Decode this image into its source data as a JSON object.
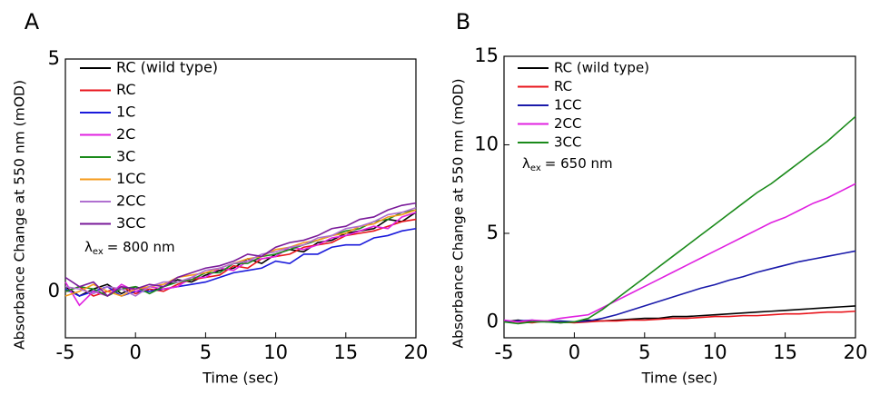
{
  "chart_data": [
    {
      "type": "line",
      "panel": "A",
      "xlabel": "Time (sec)",
      "ylabel": "Absorbance Change at 550 nm (mOD)",
      "xlim": [
        -5,
        20
      ],
      "ylim": [
        -1,
        5
      ],
      "xticks": [
        -5,
        0,
        5,
        10,
        15,
        20
      ],
      "yticks": [
        0,
        5
      ],
      "annotation": {
        "symbol": "λ",
        "subscript": "ex",
        "text": "= 800 nm"
      },
      "x": [
        -5,
        -4,
        -3,
        -2,
        -1,
        0,
        1,
        2,
        3,
        4,
        5,
        6,
        7,
        8,
        9,
        10,
        11,
        12,
        13,
        14,
        15,
        16,
        17,
        18,
        19,
        20
      ],
      "series": [
        {
          "name": "RC (wild type)",
          "color": "#000000",
          "values": [
            0.1,
            -0.1,
            0.05,
            0.15,
            -0.05,
            0.1,
            0,
            0.1,
            0.25,
            0.2,
            0.35,
            0.45,
            0.5,
            0.7,
            0.6,
            0.8,
            0.9,
            0.85,
            1.05,
            1.1,
            1.25,
            1.3,
            1.35,
            1.55,
            1.5,
            1.7
          ]
        },
        {
          "name": "RC",
          "color": "#e8141b",
          "values": [
            0,
            0.1,
            -0.1,
            0,
            0.1,
            -0.05,
            0.05,
            0,
            0.15,
            0.25,
            0.3,
            0.35,
            0.55,
            0.5,
            0.7,
            0.75,
            0.8,
            0.95,
            1.0,
            1.05,
            1.2,
            1.25,
            1.3,
            1.4,
            1.5,
            1.55
          ]
        },
        {
          "name": "1C",
          "color": "#1a1adb",
          "values": [
            0.05,
            -0.1,
            0,
            0.1,
            -0.1,
            0,
            0,
            0.05,
            0.1,
            0.15,
            0.2,
            0.3,
            0.4,
            0.45,
            0.5,
            0.65,
            0.6,
            0.8,
            0.8,
            0.95,
            1.0,
            1.0,
            1.15,
            1.2,
            1.3,
            1.35
          ]
        },
        {
          "name": "2C",
          "color": "#e020e0",
          "values": [
            0.2,
            -0.3,
            0,
            -0.1,
            0.15,
            0,
            0.1,
            0.05,
            0.1,
            0.3,
            0.3,
            0.5,
            0.45,
            0.65,
            0.7,
            0.75,
            0.95,
            0.9,
            1.0,
            1.15,
            1.2,
            1.3,
            1.4,
            1.35,
            1.6,
            1.7
          ]
        },
        {
          "name": "3C",
          "color": "#1a8a1a",
          "values": [
            0,
            0.1,
            0.05,
            -0.1,
            0.05,
            0.1,
            -0.05,
            0.1,
            0.2,
            0.25,
            0.4,
            0.4,
            0.6,
            0.6,
            0.75,
            0.8,
            0.9,
            1.0,
            1.1,
            1.2,
            1.3,
            1.35,
            1.5,
            1.55,
            1.7,
            1.75
          ]
        },
        {
          "name": "1CC",
          "color": "#f59a1a",
          "values": [
            -0.1,
            0,
            0.15,
            0,
            -0.1,
            0.05,
            0.1,
            0.15,
            0.3,
            0.35,
            0.4,
            0.5,
            0.6,
            0.7,
            0.75,
            0.9,
            0.95,
            1.05,
            1.1,
            1.2,
            1.25,
            1.4,
            1.45,
            1.6,
            1.65,
            1.75
          ]
        },
        {
          "name": "2CC",
          "color": "#b070d0",
          "values": [
            0.1,
            0.05,
            -0.05,
            0.1,
            0.05,
            -0.1,
            0.1,
            0.2,
            0.2,
            0.3,
            0.45,
            0.5,
            0.6,
            0.65,
            0.8,
            0.85,
            0.95,
            1.0,
            1.15,
            1.2,
            1.35,
            1.4,
            1.5,
            1.65,
            1.7,
            1.8
          ]
        },
        {
          "name": "3CC",
          "color": "#7a1a9a",
          "values": [
            0.3,
            0.1,
            0.2,
            -0.1,
            0.1,
            0.05,
            0.15,
            0.1,
            0.3,
            0.4,
            0.5,
            0.55,
            0.65,
            0.8,
            0.75,
            0.95,
            1.05,
            1.1,
            1.2,
            1.35,
            1.4,
            1.55,
            1.6,
            1.75,
            1.85,
            1.9
          ]
        }
      ]
    },
    {
      "type": "line",
      "panel": "B",
      "xlabel": "Time (sec)",
      "ylabel": "Absorbance Change at 550 mn (mOD)",
      "xlim": [
        -5,
        20
      ],
      "ylim": [
        -0.9,
        15
      ],
      "xticks": [
        -5,
        0,
        5,
        10,
        15,
        20
      ],
      "yticks": [
        0,
        5,
        10,
        15
      ],
      "annotation": {
        "symbol": "λ",
        "subscript": "ex",
        "text": "= 650 nm"
      },
      "x": [
        -5,
        -4,
        -3,
        -2,
        -1,
        0,
        1,
        2,
        3,
        4,
        5,
        6,
        7,
        8,
        9,
        10,
        11,
        12,
        13,
        14,
        15,
        16,
        17,
        18,
        19,
        20
      ],
      "series": [
        {
          "name": "RC (wild type)",
          "color": "#000000",
          "values": [
            0,
            0.1,
            0,
            0.05,
            -0.05,
            0,
            0.1,
            0.05,
            0.1,
            0.15,
            0.2,
            0.2,
            0.3,
            0.3,
            0.35,
            0.4,
            0.45,
            0.5,
            0.55,
            0.6,
            0.65,
            0.7,
            0.75,
            0.8,
            0.85,
            0.9
          ]
        },
        {
          "name": "RC",
          "color": "#e8141b",
          "values": [
            0.05,
            0,
            -0.05,
            0.05,
            0,
            -0.05,
            0,
            0.05,
            0.05,
            0.1,
            0.1,
            0.15,
            0.2,
            0.2,
            0.25,
            0.3,
            0.3,
            0.35,
            0.35,
            0.4,
            0.45,
            0.45,
            0.5,
            0.55,
            0.55,
            0.6
          ]
        },
        {
          "name": "1CC",
          "color": "#1a1aaa",
          "values": [
            0,
            0.05,
            0.1,
            0,
            0.05,
            0,
            0.05,
            0.2,
            0.4,
            0.65,
            0.9,
            1.15,
            1.4,
            1.65,
            1.9,
            2.1,
            2.35,
            2.55,
            2.8,
            3.0,
            3.2,
            3.4,
            3.55,
            3.7,
            3.85,
            4.0
          ]
        },
        {
          "name": "2CC",
          "color": "#e020e0",
          "values": [
            0.1,
            0,
            0.1,
            0.05,
            0.2,
            0.3,
            0.4,
            0.8,
            1.2,
            1.6,
            2.0,
            2.4,
            2.8,
            3.2,
            3.6,
            4.0,
            4.4,
            4.8,
            5.2,
            5.6,
            5.9,
            6.3,
            6.7,
            7.0,
            7.4,
            7.8
          ]
        },
        {
          "name": "3CC",
          "color": "#1a8a1a",
          "values": [
            0,
            -0.1,
            0,
            0,
            -0.05,
            0,
            0.2,
            0.7,
            1.3,
            1.9,
            2.5,
            3.1,
            3.7,
            4.3,
            4.9,
            5.5,
            6.1,
            6.7,
            7.3,
            7.8,
            8.4,
            9.0,
            9.6,
            10.2,
            10.9,
            11.6
          ]
        }
      ]
    }
  ]
}
